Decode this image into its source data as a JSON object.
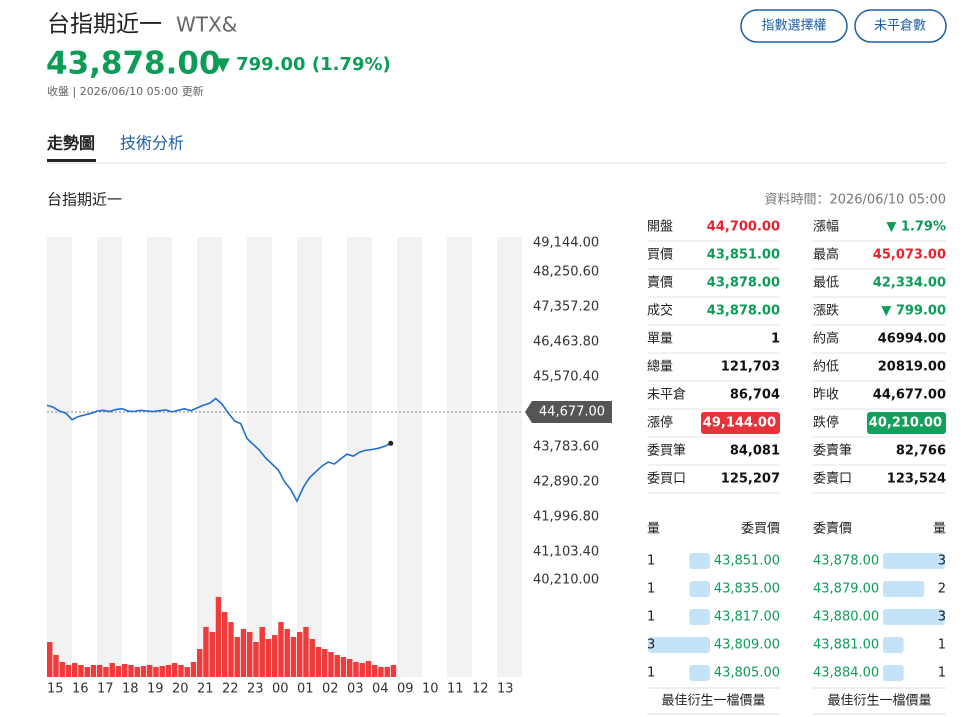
{
  "header": {
    "title": "台指期近一",
    "symbol": "WTX&",
    "price": "43,878.00",
    "change": "▼ 799.00 (1.79%)",
    "status": "收盤 | 2026/06/10 05:00 更新"
  },
  "buttons": [
    "指數選擇權",
    "未平倉數"
  ],
  "tabs": [
    "走勢圖",
    "技術分析"
  ],
  "section_title": "台指期近一",
  "data_time": "資料時間：2026/06/10 05:00",
  "chart_data": {
    "type": "line",
    "categories": [
      "15",
      null,
      null,
      null,
      "16",
      null,
      null,
      null,
      "17",
      null,
      null,
      null,
      "18",
      null,
      null,
      null,
      "19",
      null,
      null,
      null,
      "20",
      null,
      null,
      null,
      "21",
      null,
      null,
      null,
      "22",
      null,
      null,
      null,
      "23",
      null,
      null,
      null,
      "00",
      null,
      null,
      null,
      "01",
      null,
      null,
      null,
      "02",
      null,
      null,
      null,
      "03",
      null,
      null,
      null,
      "04",
      null,
      null,
      null,
      "09",
      null,
      null,
      null,
      "10",
      null,
      null,
      null,
      "11",
      null,
      null,
      null,
      "12",
      null,
      null,
      null,
      "13",
      null,
      null,
      null
    ],
    "series": [
      {
        "color": "#1f6fd1",
        "values": [
          44850,
          44800,
          44700,
          44650,
          44480,
          44560,
          44600,
          44640,
          44700,
          44720,
          44690,
          44740,
          44760,
          44700,
          44690,
          44720,
          44700,
          44690,
          44710,
          44730,
          44680,
          44720,
          44760,
          44710,
          44780,
          44850,
          44900,
          45020,
          44880,
          44650,
          44450,
          44380,
          44000,
          43850,
          43700,
          43500,
          43350,
          43200,
          42900,
          42700,
          42400,
          42750,
          43000,
          43150,
          43300,
          43400,
          43350,
          43480,
          43600,
          43550,
          43650,
          43700,
          43720,
          43750,
          43800,
          43878,
          null,
          null,
          null,
          null,
          null,
          null,
          null,
          null,
          null,
          null,
          null,
          null,
          null,
          null,
          null,
          null,
          null,
          null,
          null,
          null
        ]
      }
    ],
    "ylim": [
      40210,
      49144
    ],
    "yticks": [
      {
        "value": 49144,
        "label": "49,144.00"
      },
      {
        "value": 48250.6,
        "label": "48,250.60"
      },
      {
        "value": 47357.2,
        "label": "47,357.20"
      },
      {
        "value": 46463.8,
        "label": "46,463.80"
      },
      {
        "value": 45570.4,
        "label": "45,570.40"
      },
      {
        "value": 43783.6,
        "label": "43,783.60"
      },
      {
        "value": 42890.2,
        "label": "42,890.20"
      },
      {
        "value": 41996.8,
        "label": "41,996.80"
      },
      {
        "value": 41103.4,
        "label": "41,103.40"
      },
      {
        "value": 40210,
        "label": "40,210.00"
      }
    ],
    "reference": {
      "value": 44677,
      "label": "44,677.00"
    },
    "band_color": "#f2f2f2",
    "volume": {
      "color": "#ef3b3b",
      "ylim": [
        0,
        90
      ],
      "values": [
        35,
        22,
        15,
        12,
        14,
        12,
        10,
        12,
        12,
        10,
        14,
        11,
        13,
        12,
        10,
        11,
        12,
        10,
        11,
        12,
        14,
        12,
        10,
        15,
        28,
        50,
        45,
        80,
        65,
        55,
        40,
        48,
        45,
        35,
        50,
        38,
        42,
        55,
        48,
        40,
        45,
        50,
        38,
        30,
        28,
        25,
        22,
        20,
        18,
        15,
        14,
        16,
        12,
        10,
        10,
        12,
        null,
        null,
        null,
        null,
        null,
        null,
        null,
        null,
        null,
        null,
        null,
        null,
        null,
        null,
        null,
        null,
        null,
        null,
        null,
        null
      ]
    }
  },
  "quote": {
    "left": [
      {
        "label": "開盤",
        "value": "44,700.00",
        "color": "#e5232f"
      },
      {
        "label": "買價",
        "value": "43,851.00",
        "color": "#0c9c56"
      },
      {
        "label": "賣價",
        "value": "43,878.00",
        "color": "#0c9c56"
      },
      {
        "label": "成交",
        "value": "43,878.00",
        "color": "#0c9c56"
      },
      {
        "label": "單量",
        "value": "1",
        "color": "#111111"
      },
      {
        "label": "總量",
        "value": "121,703",
        "color": "#111111"
      },
      {
        "label": "未平倉",
        "value": "86,704",
        "color": "#111111"
      },
      {
        "label": "漲停",
        "value": "49,144.00",
        "color": "#ffffff",
        "background": "#e5323b"
      },
      {
        "label": "委買筆",
        "value": "84,081",
        "color": "#111111"
      },
      {
        "label": "委買口",
        "value": "125,207",
        "color": "#111111"
      }
    ],
    "right": [
      {
        "label": "漲幅",
        "value": "▼ 1.79%",
        "color": "#0c9c56"
      },
      {
        "label": "最高",
        "value": "45,073.00",
        "color": "#e5232f"
      },
      {
        "label": "最低",
        "value": "42,334.00",
        "color": "#0c9c56"
      },
      {
        "label": "漲跌",
        "value": "▼ 799.00",
        "color": "#0c9c56"
      },
      {
        "label": "約高",
        "value": "46994.00",
        "color": "#111111"
      },
      {
        "label": "約低",
        "value": "20819.00",
        "color": "#111111"
      },
      {
        "label": "昨收",
        "value": "44,677.00",
        "color": "#111111"
      },
      {
        "label": "跌停",
        "value": "40,210.00",
        "color": "#ffffff",
        "background": "#12a05a"
      },
      {
        "label": "委賣筆",
        "value": "82,766",
        "color": "#111111"
      },
      {
        "label": "委賣口",
        "value": "123,524",
        "color": "#111111"
      }
    ]
  },
  "order_book": {
    "headers": [
      "量",
      "委買價",
      "委賣價",
      "量"
    ],
    "bids": [
      {
        "qty": 1,
        "price": "43,851.00"
      },
      {
        "qty": 1,
        "price": "43,835.00"
      },
      {
        "qty": 1,
        "price": "43,817.00"
      },
      {
        "qty": 3,
        "price": "43,809.00"
      },
      {
        "qty": 1,
        "price": "43,805.00"
      }
    ],
    "asks": [
      {
        "qty": 3,
        "price": "43,878.00"
      },
      {
        "qty": 2,
        "price": "43,879.00"
      },
      {
        "qty": 3,
        "price": "43,880.00"
      },
      {
        "qty": 1,
        "price": "43,881.00"
      },
      {
        "qty": 1,
        "price": "43,884.00"
      }
    ],
    "footer": [
      "最佳衍生一檔價量",
      "最佳衍生一檔價量"
    ],
    "color": "#0c9c56",
    "bar_color": "#c4e3f9"
  }
}
